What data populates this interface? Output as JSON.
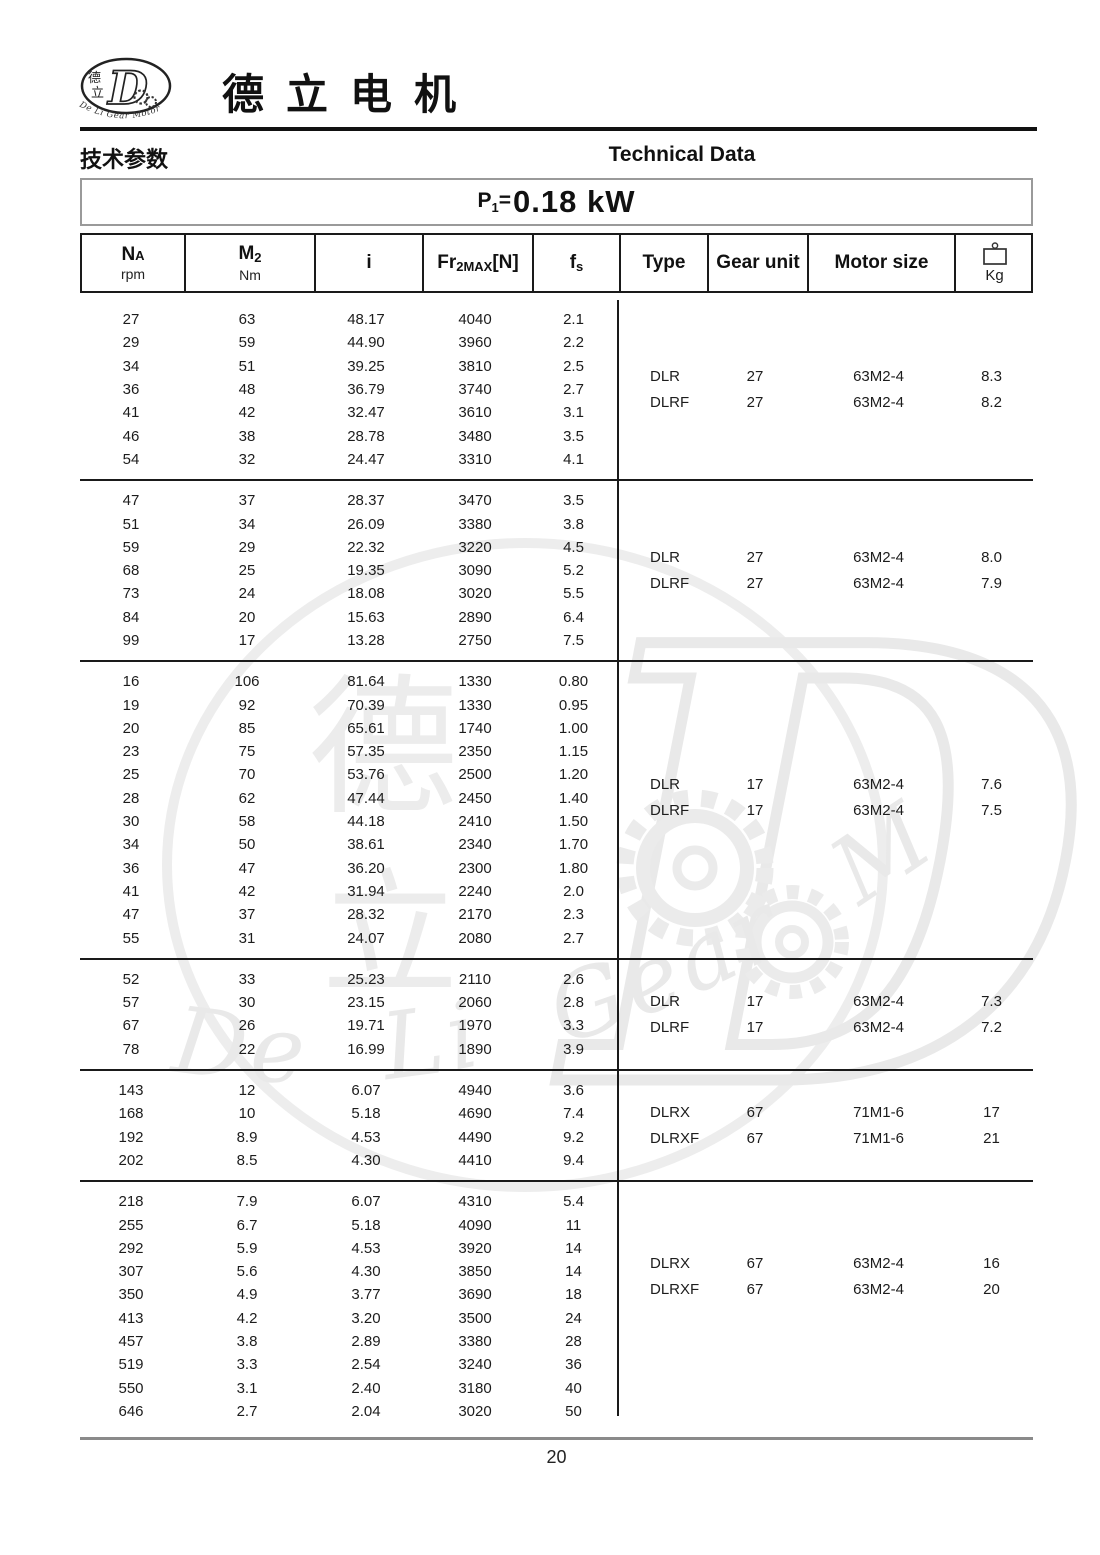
{
  "brand": {
    "logo_cn_top": "德",
    "logo_cn_bottom": "立",
    "logo_letter": "D",
    "logo_arc_text": "De Li Gear Motor",
    "company_name_cn": "德立电机"
  },
  "section": {
    "title_cn": "技术参数",
    "title_en": "Technical Data"
  },
  "power": {
    "symbol": "P",
    "symbol_sub": "1",
    "equals": "=",
    "value": "0.18 kW"
  },
  "table": {
    "headers": {
      "na_main": "N",
      "na_sub": "A",
      "na_unit": "rpm",
      "m2_main": "M",
      "m2_sub": "2",
      "m2_unit": "Nm",
      "ratio": "i",
      "fr_main": "Fr",
      "fr_sub": "2MAX",
      "fr_post": "[N]",
      "fs_main": "f",
      "fs_sub": "s",
      "type": "Type",
      "gear_unit": "Gear unit",
      "motor_size": "Motor size",
      "weight_unit": "Kg"
    },
    "groups": [
      {
        "rows": [
          [
            "27",
            "63",
            "48.17",
            "4040",
            "2.1"
          ],
          [
            "29",
            "59",
            "44.90",
            "3960",
            "2.2"
          ],
          [
            "34",
            "51",
            "39.25",
            "3810",
            "2.5"
          ],
          [
            "36",
            "48",
            "36.79",
            "3740",
            "2.7"
          ],
          [
            "41",
            "42",
            "32.47",
            "3610",
            "3.1"
          ],
          [
            "46",
            "38",
            "28.78",
            "3480",
            "3.5"
          ],
          [
            "54",
            "32",
            "24.47",
            "3310",
            "4.1"
          ]
        ],
        "variants": [
          {
            "type": "DLR",
            "gear_unit": "27",
            "motor_size": "63M2-4",
            "kg": "8.3"
          },
          {
            "type": "DLRF",
            "gear_unit": "27",
            "motor_size": "63M2-4",
            "kg": "8.2"
          }
        ]
      },
      {
        "rows": [
          [
            "47",
            "37",
            "28.37",
            "3470",
            "3.5"
          ],
          [
            "51",
            "34",
            "26.09",
            "3380",
            "3.8"
          ],
          [
            "59",
            "29",
            "22.32",
            "3220",
            "4.5"
          ],
          [
            "68",
            "25",
            "19.35",
            "3090",
            "5.2"
          ],
          [
            "73",
            "24",
            "18.08",
            "3020",
            "5.5"
          ],
          [
            "84",
            "20",
            "15.63",
            "2890",
            "6.4"
          ],
          [
            "99",
            "17",
            "13.28",
            "2750",
            "7.5"
          ]
        ],
        "variants": [
          {
            "type": "DLR",
            "gear_unit": "27",
            "motor_size": "63M2-4",
            "kg": "8.0"
          },
          {
            "type": "DLRF",
            "gear_unit": "27",
            "motor_size": "63M2-4",
            "kg": "7.9"
          }
        ]
      },
      {
        "rows": [
          [
            "16",
            "106",
            "81.64",
            "1330",
            "0.80"
          ],
          [
            "19",
            "92",
            "70.39",
            "1330",
            "0.95"
          ],
          [
            "20",
            "85",
            "65.61",
            "1740",
            "1.00"
          ],
          [
            "23",
            "75",
            "57.35",
            "2350",
            "1.15"
          ],
          [
            "25",
            "70",
            "53.76",
            "2500",
            "1.20"
          ],
          [
            "28",
            "62",
            "47.44",
            "2450",
            "1.40"
          ],
          [
            "30",
            "58",
            "44.18",
            "2410",
            "1.50"
          ],
          [
            "34",
            "50",
            "38.61",
            "2340",
            "1.70"
          ],
          [
            "36",
            "47",
            "36.20",
            "2300",
            "1.80"
          ],
          [
            "41",
            "42",
            "31.94",
            "2240",
            "2.0"
          ],
          [
            "47",
            "37",
            "28.32",
            "2170",
            "2.3"
          ],
          [
            "55",
            "31",
            "24.07",
            "2080",
            "2.7"
          ]
        ],
        "variants": [
          {
            "type": "DLR",
            "gear_unit": "17",
            "motor_size": "63M2-4",
            "kg": "7.6"
          },
          {
            "type": "DLRF",
            "gear_unit": "17",
            "motor_size": "63M2-4",
            "kg": "7.5"
          }
        ]
      },
      {
        "rows": [
          [
            "52",
            "33",
            "25.23",
            "2110",
            "2.6"
          ],
          [
            "57",
            "30",
            "23.15",
            "2060",
            "2.8"
          ],
          [
            "67",
            "26",
            "19.71",
            "1970",
            "3.3"
          ],
          [
            "78",
            "22",
            "16.99",
            "1890",
            "3.9"
          ]
        ],
        "variants": [
          {
            "type": "DLR",
            "gear_unit": "17",
            "motor_size": "63M2-4",
            "kg": "7.3"
          },
          {
            "type": "DLRF",
            "gear_unit": "17",
            "motor_size": "63M2-4",
            "kg": "7.2"
          }
        ]
      },
      {
        "rows": [
          [
            "143",
            "12",
            "6.07",
            "4940",
            "3.6"
          ],
          [
            "168",
            "10",
            "5.18",
            "4690",
            "7.4"
          ],
          [
            "192",
            "8.9",
            "4.53",
            "4490",
            "9.2"
          ],
          [
            "202",
            "8.5",
            "4.30",
            "4410",
            "9.4"
          ]
        ],
        "variants": [
          {
            "type": "DLRX",
            "gear_unit": "67",
            "motor_size": "71M1-6",
            "kg": "17"
          },
          {
            "type": "DLRXF",
            "gear_unit": "67",
            "motor_size": "71M1-6",
            "kg": "21"
          }
        ]
      },
      {
        "rows": [
          [
            "218",
            "7.9",
            "6.07",
            "4310",
            "5.4"
          ],
          [
            "255",
            "6.7",
            "5.18",
            "4090",
            "11"
          ],
          [
            "292",
            "5.9",
            "4.53",
            "3920",
            "14"
          ],
          [
            "307",
            "5.6",
            "4.30",
            "3850",
            "14"
          ],
          [
            "350",
            "4.9",
            "3.77",
            "3690",
            "18"
          ],
          [
            "413",
            "4.2",
            "3.20",
            "3500",
            "24"
          ],
          [
            "457",
            "3.8",
            "2.89",
            "3380",
            "28"
          ],
          [
            "519",
            "3.3",
            "2.54",
            "3240",
            "36"
          ],
          [
            "550",
            "3.1",
            "2.40",
            "3180",
            "40"
          ],
          [
            "646",
            "2.7",
            "2.04",
            "3020",
            "50"
          ]
        ],
        "variants": [
          {
            "type": "DLRX",
            "gear_unit": "67",
            "motor_size": "63M2-4",
            "kg": "16"
          },
          {
            "type": "DLRXF",
            "gear_unit": "67",
            "motor_size": "63M2-4",
            "kg": "20"
          }
        ]
      }
    ]
  },
  "watermark": {
    "cn_top": "德",
    "cn_bottom": "立",
    "letter": "D",
    "script": "De Li Gear Motor"
  },
  "footer": {
    "page_number": "20"
  }
}
